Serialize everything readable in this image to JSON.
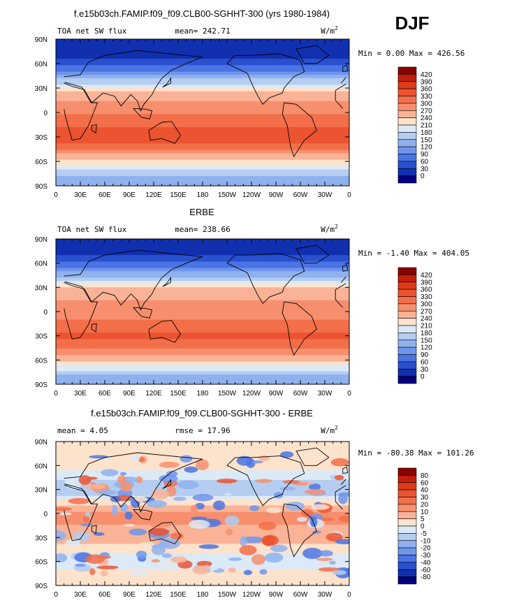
{
  "season": "DJF",
  "chart_data": [
    {
      "type": "heatmap",
      "title": "f.e15b03ch.FAMIP.f09_f09.CLB00-SGHHT-300 (yrs 1980-1984)",
      "left_label": "TOA net SW flux",
      "center_label": "mean= 242.71",
      "mean": 242.71,
      "units_base": "W/m",
      "units_exp": "2",
      "minmax_label": "Min =   0.00 Max = 426.56",
      "min": 0.0,
      "max": 426.56,
      "colorbar_levels": [
        "420",
        "390",
        "360",
        "330",
        "300",
        "270",
        "240",
        "210",
        "180",
        "150",
        "120",
        "90",
        "60",
        "30",
        "0"
      ],
      "colorbar_colors": [
        "#8b0000",
        "#c0200c",
        "#dd3a1a",
        "#ec5330",
        "#f36f4a",
        "#f78f6e",
        "#fab396",
        "#fde2cc",
        "#dce9f6",
        "#b4cdf0",
        "#8fb1ee",
        "#6f95ec",
        "#4a74e4",
        "#2a50d0",
        "#1030b0",
        "#000080"
      ],
      "zonal_profile": [
        {
          "lat": 85,
          "value": 0
        },
        {
          "lat": 65,
          "value": 30
        },
        {
          "lat": 45,
          "value": 120
        },
        {
          "lat": 25,
          "value": 240
        },
        {
          "lat": 5,
          "value": 290
        },
        {
          "lat": -15,
          "value": 320
        },
        {
          "lat": -30,
          "value": 360
        },
        {
          "lat": -45,
          "value": 300
        },
        {
          "lat": -60,
          "value": 230
        },
        {
          "lat": -80,
          "value": 130
        }
      ],
      "xticks": [
        "0",
        "30E",
        "60E",
        "90E",
        "120E",
        "150E",
        "180",
        "150W",
        "120W",
        "90W",
        "60W",
        "30W",
        "0"
      ],
      "yticks": [
        "90N",
        "60N",
        "30N",
        "0",
        "30S",
        "60S",
        "90S"
      ]
    },
    {
      "type": "heatmap",
      "title": "ERBE",
      "left_label": "TOA net SW flux",
      "center_label": "mean= 238.66",
      "mean": 238.66,
      "units_base": "W/m",
      "units_exp": "2",
      "minmax_label": "Min =  -1.40 Max = 404.05",
      "min": -1.4,
      "max": 404.05,
      "colorbar_levels": [
        "420",
        "390",
        "360",
        "330",
        "300",
        "270",
        "240",
        "210",
        "180",
        "150",
        "120",
        "90",
        "60",
        "30",
        "0"
      ],
      "colorbar_colors": [
        "#8b0000",
        "#c0200c",
        "#dd3a1a",
        "#ec5330",
        "#f36f4a",
        "#f78f6e",
        "#fab396",
        "#fde2cc",
        "#dce9f6",
        "#b4cdf0",
        "#8fb1ee",
        "#6f95ec",
        "#4a74e4",
        "#2a50d0",
        "#1030b0",
        "#000080"
      ],
      "zonal_profile": [
        {
          "lat": 85,
          "value": 0
        },
        {
          "lat": 65,
          "value": 40
        },
        {
          "lat": 45,
          "value": 140
        },
        {
          "lat": 25,
          "value": 260
        },
        {
          "lat": 5,
          "value": 280
        },
        {
          "lat": -15,
          "value": 310
        },
        {
          "lat": -30,
          "value": 340
        },
        {
          "lat": -45,
          "value": 300
        },
        {
          "lat": -60,
          "value": 250
        },
        {
          "lat": -80,
          "value": 140
        }
      ],
      "xticks": [
        "0",
        "30E",
        "60E",
        "90E",
        "120E",
        "150E",
        "180",
        "150W",
        "120W",
        "90W",
        "60W",
        "30W",
        "0"
      ],
      "yticks": [
        "90N",
        "60N",
        "30N",
        "0",
        "30S",
        "60S",
        "90S"
      ]
    },
    {
      "type": "heatmap",
      "title": "f.e15b03ch.FAMIP.f09_f09.CLB00-SGHHT-300 - ERBE",
      "left_label": "mean =    4.05",
      "center_label": "rmse =   17.96",
      "mean": 4.05,
      "rmse": 17.96,
      "units_base": "W/m",
      "units_exp": "2",
      "minmax_label": "Min = -80.38 Max = 101.26",
      "min": -80.38,
      "max": 101.26,
      "colorbar_levels": [
        "80",
        "60",
        "40",
        "30",
        "20",
        "10",
        "5",
        "0",
        "-5",
        "-10",
        "-20",
        "-30",
        "-40",
        "-60",
        "-80"
      ],
      "colorbar_colors": [
        "#8b0000",
        "#c0200c",
        "#dd3a1a",
        "#ec5330",
        "#f36f4a",
        "#f78f6e",
        "#fab396",
        "#fde2cc",
        "#dce9f6",
        "#b4cdf0",
        "#8fb1ee",
        "#6f95ec",
        "#4a74e4",
        "#2a50d0",
        "#1030b0",
        "#000080"
      ],
      "zonal_profile": [
        {
          "lat": 85,
          "value": 0
        },
        {
          "lat": 60,
          "value": 2
        },
        {
          "lat": 30,
          "value": -10
        },
        {
          "lat": 0,
          "value": 12
        },
        {
          "lat": -30,
          "value": 8
        },
        {
          "lat": -60,
          "value": -4
        },
        {
          "lat": -80,
          "value": 3
        }
      ],
      "xticks": [
        "0",
        "30E",
        "60E",
        "90E",
        "120E",
        "150E",
        "180",
        "150W",
        "120W",
        "90W",
        "60W",
        "30W",
        "0"
      ],
      "yticks": [
        "90N",
        "60N",
        "30N",
        "0",
        "30S",
        "60S",
        "90S"
      ]
    }
  ]
}
